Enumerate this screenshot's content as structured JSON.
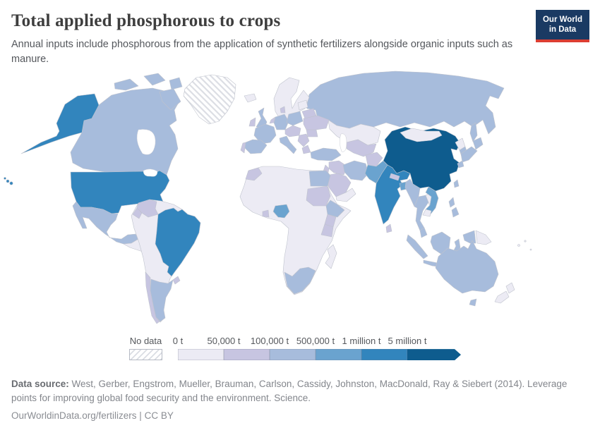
{
  "header": {
    "title": "Total applied phosphorous to crops",
    "subtitle": "Annual inputs include phosphorous from the application of synthetic fertilizers alongside organic inputs such as manure.",
    "logo": {
      "line1": "Our World",
      "line2": "in Data"
    }
  },
  "colors": {
    "logo_bg": "#1a3a63",
    "logo_accent": "#dc3e32",
    "country_border": "#bfc3cd",
    "no_data_hatch": "#dadde3"
  },
  "legend": {
    "no_data_label": "No data",
    "bins": [
      {
        "label": "0 t",
        "color": "#ecebf4"
      },
      {
        "label": "50,000 t",
        "color": "#c7c5e1"
      },
      {
        "label": "100,000 t",
        "color": "#a7bcdc"
      },
      {
        "label": "500,000 t",
        "color": "#6aa3cf"
      },
      {
        "label": "1 million t",
        "color": "#3285bd"
      },
      {
        "label": "5 million t",
        "color": "#0e5c8e"
      }
    ]
  },
  "chart_data": {
    "type": "heatmap",
    "subtype": "choropleth_world_map",
    "title": "Total applied phosphorous to crops",
    "unit": "tonnes of phosphorous",
    "bin_labels": [
      "0 t",
      "50,000 t",
      "100,000 t",
      "500,000 t",
      "1 million t",
      "5 million t"
    ],
    "no_data_regions": [
      "greenland"
    ],
    "region_bins": {
      "alaska": 4,
      "hawaii": 4,
      "usa": 4,
      "canada": 2,
      "arctic-islands": 2,
      "greenland": "nodata",
      "mexico": 2,
      "central-america": 0,
      "cuba": 1,
      "hispaniola": 1,
      "south-america-base": 0,
      "colombia": 1,
      "ecuador": 1,
      "brazil": 4,
      "chile": 1,
      "argentina": 2,
      "uruguay": 1,
      "iceland": 0,
      "scandinavia": 0,
      "uk": 2,
      "ireland": 1,
      "france": 2,
      "spain": 2,
      "portugal": 1,
      "germany": 2,
      "benelux": 1,
      "denmark": 1,
      "poland": 2,
      "central-europe": 1,
      "italy": 2,
      "balkans": 1,
      "greece": 1,
      "romania": 1,
      "ukraine": 1,
      "belarus": 1,
      "baltics": 0,
      "russia": 2,
      "kazakhstan": 0,
      "central-asia": 1,
      "turkey": 2,
      "syria-iraq": 1,
      "levant": 1,
      "saudi-arabia": 1,
      "yemen-oman": 0,
      "iran": 2,
      "afghanistan": 1,
      "pakistan": 3,
      "india": 4,
      "nepal": 1,
      "bangladesh": 3,
      "sri-lanka": 1,
      "china": 5,
      "mongolia": 0,
      "north-korea": 0,
      "south-korea": 2,
      "japan": 2,
      "taiwan": 2,
      "myanmar": 2,
      "thailand": 2,
      "laos": 0,
      "vietnam": 3,
      "cambodia": 0,
      "malaysia": 2,
      "sumatra": 2,
      "java": 2,
      "borneo": 2,
      "sulawesi": 2,
      "west-new-guinea": 2,
      "papua-new-guinea": 0,
      "philippines": 2,
      "africa-base": 0,
      "morocco": 1,
      "egypt": 2,
      "sudan": 1,
      "ethiopia": 2,
      "kenya": 1,
      "tanzania": 1,
      "nigeria": 3,
      "ghana": 1,
      "south-africa": 2,
      "madagascar": 0,
      "australia": 2,
      "tasmania": 2,
      "new-zealand": 0,
      "pacific-islands": 0
    }
  },
  "footer": {
    "source_label": "Data source:",
    "source_text": " West, Gerber, Engstrom, Mueller, Brauman, Carlson, Cassidy, Johnston, MacDonald, Ray & Siebert (2014). Leverage points for improving global food security and the environment. Science.",
    "citation": "OurWorldinData.org/fertilizers | CC BY"
  }
}
